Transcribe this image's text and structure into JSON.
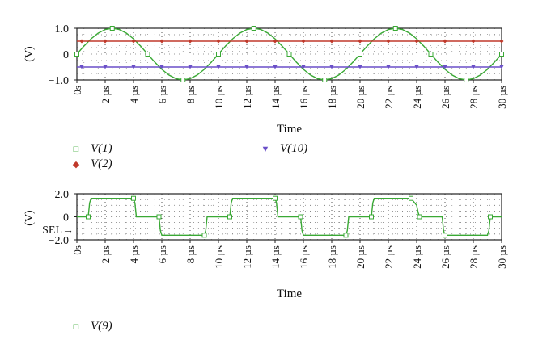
{
  "chart_data": [
    {
      "type": "line",
      "ylabel": "(V)",
      "xlabel": "Time",
      "xlim": [
        0,
        30
      ],
      "ylim": [
        -1.0,
        1.0
      ],
      "x_tick_labels": [
        "0s",
        "2 µs",
        "4 µs",
        "6 µs",
        "8 µs",
        "10 µs",
        "12 µs",
        "14 µs",
        "16 µs",
        "18 µs",
        "20 µs",
        "22 µs",
        "24 µs",
        "26 µs",
        "28 µs",
        "30 µs"
      ],
      "y_tick_labels": [
        "1.0",
        "0",
        "−1.0"
      ],
      "grid": "dotted",
      "legend_position": "bottom",
      "series": [
        {
          "name": "V(1)",
          "color": "#3aa935",
          "marker": "square",
          "x": [
            0,
            0.5,
            1,
            1.5,
            2,
            2.5,
            3,
            3.5,
            4,
            4.5,
            5,
            5.5,
            6,
            6.5,
            7,
            7.5,
            8,
            8.5,
            9,
            9.5,
            10,
            10.5,
            11,
            11.5,
            12,
            12.5,
            13,
            13.5,
            14,
            14.5,
            15,
            15.5,
            16,
            16.5,
            17,
            17.5,
            18,
            18.5,
            19,
            19.5,
            20,
            20.5,
            21,
            21.5,
            22,
            22.5,
            23,
            23.5,
            24,
            24.5,
            25,
            25.5,
            26,
            26.5,
            27,
            27.5,
            28,
            28.5,
            29,
            29.5,
            30
          ],
          "y": [
            0,
            0.31,
            0.59,
            0.81,
            0.95,
            1,
            0.95,
            0.81,
            0.59,
            0.31,
            0,
            -0.31,
            -0.59,
            -0.81,
            -0.95,
            -1,
            -0.95,
            -0.81,
            -0.59,
            -0.31,
            0,
            0.31,
            0.59,
            0.81,
            0.95,
            1,
            0.95,
            0.81,
            0.59,
            0.31,
            0,
            -0.31,
            -0.59,
            -0.81,
            -0.95,
            -1,
            -0.95,
            -0.81,
            -0.59,
            -0.31,
            0,
            0.31,
            0.59,
            0.81,
            0.95,
            1,
            0.95,
            0.81,
            0.59,
            0.31,
            0,
            -0.31,
            -0.59,
            -0.81,
            -0.95,
            -1,
            -0.95,
            -0.81,
            -0.59,
            -0.31,
            0
          ]
        },
        {
          "name": "V(2)",
          "color": "#c0392b",
          "marker": "diamond",
          "x": [
            0,
            30
          ],
          "y": [
            0.5,
            0.5
          ]
        },
        {
          "name": "V(10)",
          "color": "#6a4fc8",
          "marker": "triangle-down",
          "x": [
            0,
            30
          ],
          "y": [
            -0.5,
            -0.5
          ]
        }
      ]
    },
    {
      "type": "line",
      "ylabel": "(V)",
      "xlabel": "Time",
      "xlim": [
        0,
        30
      ],
      "ylim": [
        -2.0,
        2.0
      ],
      "x_tick_labels": [
        "0s",
        "2 µs",
        "4 µs",
        "6 µs",
        "8 µs",
        "10 µs",
        "12 µs",
        "14 µs",
        "16 µs",
        "18 µs",
        "20 µs",
        "22 µs",
        "24 µs",
        "26 µs",
        "28 µs",
        "30 µs"
      ],
      "y_tick_labels": [
        "2.0",
        "0",
        "−2.0"
      ],
      "extra_label": "SEL→",
      "grid": "dotted",
      "legend_position": "bottom",
      "series": [
        {
          "name": "V(9)",
          "color": "#3aa935",
          "marker": "square",
          "x": [
            0,
            0.8,
            0.9,
            1.0,
            4.0,
            4.1,
            4.2,
            5.8,
            5.9,
            6.0,
            9.0,
            9.1,
            9.2,
            10.8,
            10.9,
            11.0,
            14.0,
            14.1,
            14.2,
            15.8,
            15.9,
            16.0,
            19.0,
            19.1,
            19.2,
            20.8,
            20.9,
            21.0,
            23.6,
            24.0,
            24.1,
            24.2,
            25.8,
            25.9,
            26.0,
            29.0,
            29.1,
            29.2,
            30
          ],
          "y": [
            0,
            0,
            1.2,
            1.6,
            1.6,
            1.2,
            0,
            0,
            -1.2,
            -1.6,
            -1.6,
            -1.2,
            0,
            0,
            1.2,
            1.6,
            1.6,
            1.2,
            0,
            0,
            -1.2,
            -1.6,
            -1.6,
            -1.2,
            0,
            0,
            1.2,
            1.6,
            1.6,
            1.0,
            0.4,
            0,
            0,
            -1.2,
            -1.6,
            -1.6,
            -1.2,
            0,
            0
          ]
        }
      ]
    }
  ]
}
